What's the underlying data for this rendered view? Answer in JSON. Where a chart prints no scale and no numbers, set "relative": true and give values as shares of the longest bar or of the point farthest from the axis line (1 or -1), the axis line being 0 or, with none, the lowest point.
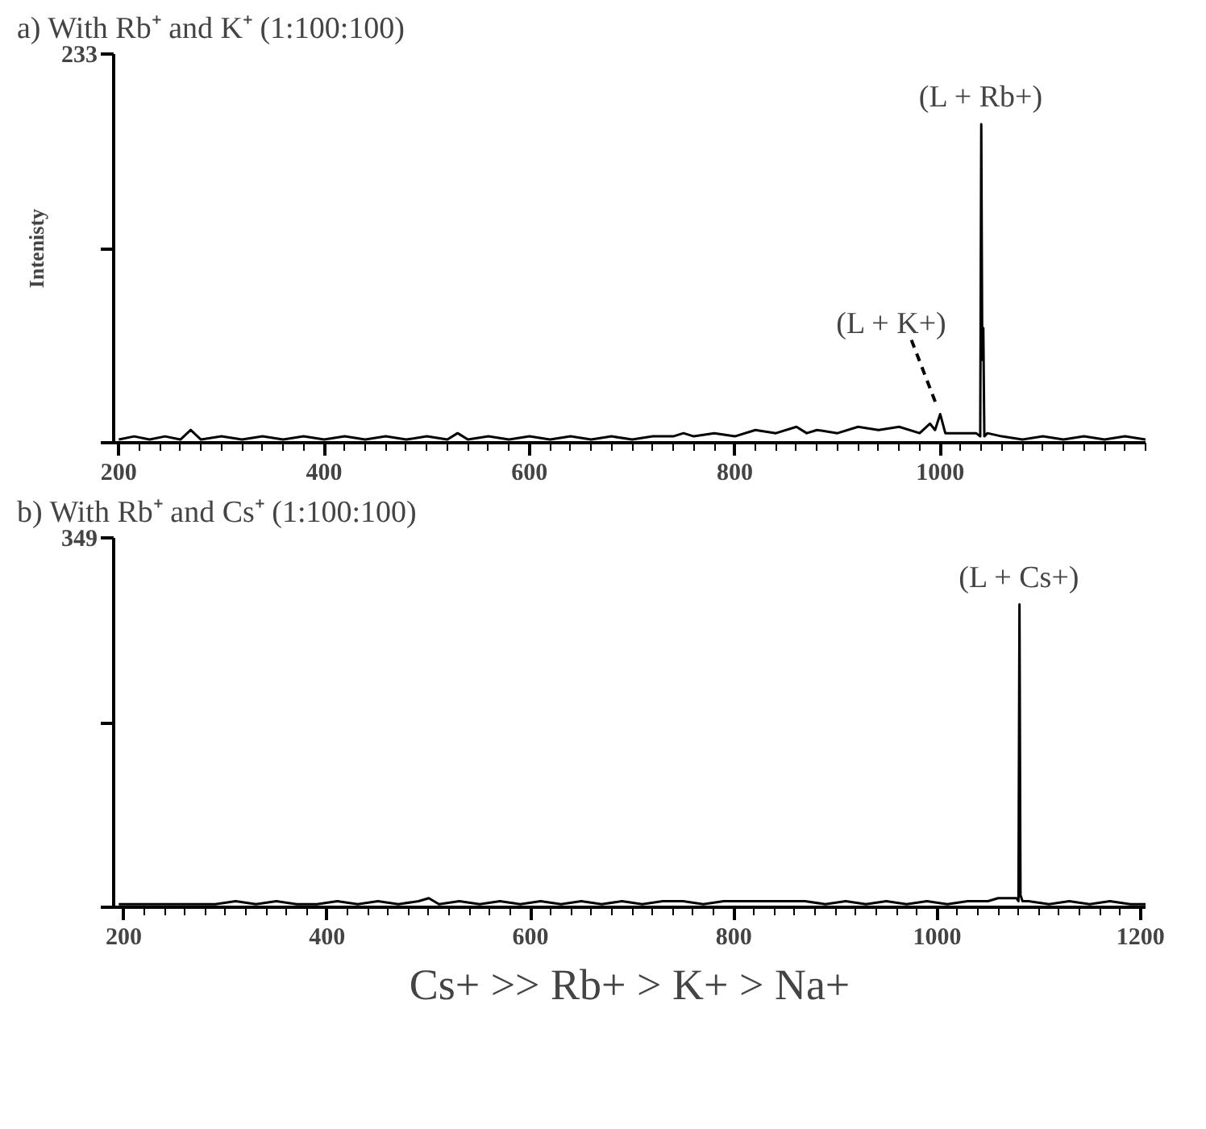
{
  "chart_data": [
    {
      "type": "line",
      "title": "a) With Rb⁺ and K⁺ (1:100:100)",
      "ylabel": "Intenisty",
      "xlim": [
        195,
        1200
      ],
      "relative": true,
      "xticks": [
        200,
        400,
        600,
        800,
        1000
      ],
      "grid": false,
      "marker": "none",
      "line_style": "solid",
      "series": [
        {
          "color": "#000000",
          "x": [
            200,
            215,
            230,
            245,
            260,
            270,
            280,
            300,
            320,
            340,
            360,
            380,
            400,
            420,
            440,
            460,
            480,
            500,
            520,
            530,
            540,
            560,
            580,
            600,
            620,
            640,
            660,
            680,
            700,
            720,
            740,
            750,
            760,
            780,
            800,
            820,
            840,
            860,
            870,
            880,
            900,
            920,
            940,
            960,
            980,
            990,
            995,
            1000,
            1005,
            1020,
            1035,
            1039,
            1040,
            1041,
            1042,
            1043,
            1046,
            1060,
            1080,
            1100,
            1120,
            1140,
            1160,
            1180,
            1200
          ],
          "values": [
            0.01,
            0.02,
            0.01,
            0.02,
            0.01,
            0.04,
            0.01,
            0.02,
            0.01,
            0.02,
            0.01,
            0.02,
            0.01,
            0.02,
            0.01,
            0.02,
            0.01,
            0.02,
            0.01,
            0.03,
            0.01,
            0.02,
            0.01,
            0.02,
            0.01,
            0.02,
            0.01,
            0.02,
            0.01,
            0.02,
            0.02,
            0.03,
            0.02,
            0.03,
            0.02,
            0.04,
            0.03,
            0.05,
            0.03,
            0.04,
            0.03,
            0.05,
            0.04,
            0.05,
            0.03,
            0.06,
            0.04,
            0.09,
            0.03,
            0.03,
            0.03,
            0.02,
            1,
            0.26,
            0.36,
            0.02,
            0.03,
            0.02,
            0.01,
            0.02,
            0.01,
            0.02,
            0.01,
            0.02,
            0.01
          ]
        }
      ],
      "annotations": [
        {
          "text": "(L + Rb+)",
          "x": 1040,
          "y": 1
        },
        {
          "text": "(L + K+)",
          "x": 1000,
          "y": 0.09
        },
        "233"
      ]
    },
    {
      "type": "line",
      "title": "b) With Rb⁺ and Cs⁺ (1:100:100)",
      "xlim": [
        190,
        1205
      ],
      "relative": true,
      "xticks": [
        200,
        400,
        600,
        800,
        1000,
        1200
      ],
      "grid": false,
      "marker": "none",
      "line_style": "solid",
      "series": [
        {
          "color": "#000000",
          "x": [
            195,
            210,
            230,
            250,
            270,
            290,
            310,
            330,
            350,
            370,
            390,
            410,
            430,
            450,
            470,
            490,
            500,
            510,
            530,
            550,
            570,
            590,
            610,
            630,
            650,
            670,
            690,
            710,
            730,
            750,
            770,
            790,
            810,
            830,
            850,
            870,
            890,
            910,
            930,
            950,
            970,
            990,
            1010,
            1030,
            1050,
            1060,
            1070,
            1078,
            1080,
            1081,
            1082,
            1084,
            1090,
            1110,
            1130,
            1150,
            1170,
            1190,
            1205
          ],
          "values": [
            0.01,
            0.01,
            0.01,
            0.01,
            0.01,
            0.01,
            0.02,
            0.01,
            0.02,
            0.01,
            0.01,
            0.02,
            0.01,
            0.02,
            0.01,
            0.02,
            0.03,
            0.01,
            0.02,
            0.01,
            0.02,
            0.01,
            0.02,
            0.01,
            0.02,
            0.01,
            0.02,
            0.01,
            0.02,
            0.02,
            0.01,
            0.02,
            0.02,
            0.02,
            0.02,
            0.02,
            0.01,
            0.02,
            0.01,
            0.02,
            0.01,
            0.02,
            0.01,
            0.02,
            0.02,
            0.03,
            0.03,
            0.03,
            0.02,
            1,
            0.04,
            0.02,
            0.02,
            0.01,
            0.02,
            0.01,
            0.02,
            0.01,
            0.01
          ]
        }
      ],
      "annotations": [
        {
          "text": "(L + Cs+)",
          "x": 1081,
          "y": 1
        },
        "349",
        "Cs+ >> Rb+ > K+ > Na+"
      ]
    }
  ]
}
